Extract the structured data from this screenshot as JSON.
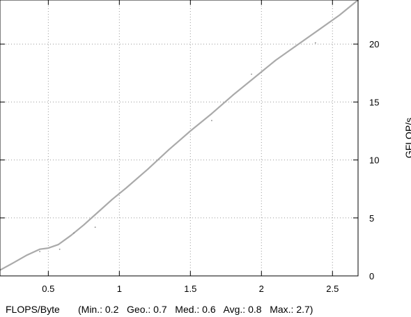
{
  "chart_data": {
    "type": "line",
    "title": "",
    "xlabel": "FLOPS/Byte",
    "ylabel": "GFLOP/s",
    "x_stats": "(Min.: 0.2   Geo.: 0.7   Med.: 0.6   Avg.: 0.8   Max.: 2.7)",
    "xlim": [
      0.16,
      2.68
    ],
    "ylim": [
      0,
      23.8
    ],
    "xticks": [
      0.5,
      1,
      1.5,
      2,
      2.5
    ],
    "xtick_labels": [
      "0.5",
      "1",
      "1.5",
      "2",
      "2.5"
    ],
    "yticks": [
      0,
      5,
      10,
      15,
      20
    ],
    "ytick_labels": [
      "0",
      "5",
      "10",
      "15",
      "20"
    ],
    "y_axis_side": "right",
    "grid": true,
    "series": [
      {
        "color": "#aaaaaa",
        "x": [
          0.16,
          0.25,
          0.35,
          0.44,
          0.5,
          0.57,
          0.66,
          0.75,
          0.85,
          0.95,
          1.05,
          1.2,
          1.35,
          1.5,
          1.65,
          1.8,
          1.95,
          2.1,
          2.25,
          2.4,
          2.55,
          2.68
        ],
        "y": [
          0.5,
          1.1,
          1.8,
          2.3,
          2.4,
          2.7,
          3.5,
          4.4,
          5.5,
          6.6,
          7.6,
          9.2,
          10.9,
          12.5,
          14.0,
          15.6,
          17.1,
          18.6,
          19.9,
          21.2,
          22.5,
          23.8
        ]
      }
    ],
    "scatter": {
      "color": "#888888",
      "x": [
        0.44,
        0.58,
        0.68,
        0.83,
        1.65,
        1.93,
        2.38
      ],
      "y": [
        2.1,
        2.3,
        3.7,
        4.2,
        13.4,
        17.4,
        20.1
      ]
    }
  }
}
